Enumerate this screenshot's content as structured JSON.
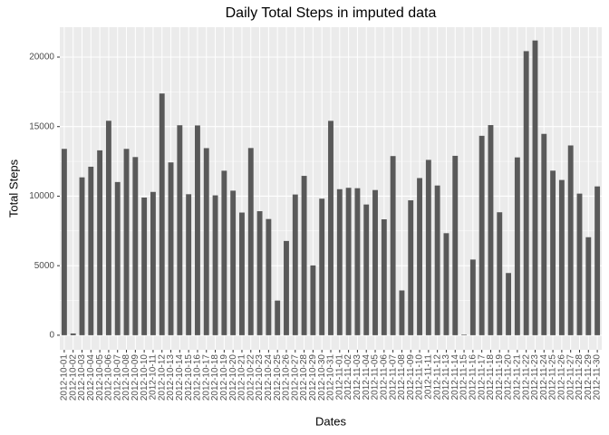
{
  "chart_data": {
    "type": "bar",
    "title": "Daily Total Steps in imputed data",
    "x_label": "Dates",
    "y_label": "Total Steps",
    "categories": [
      "2012-10-01",
      "2012-10-02",
      "2012-10-03",
      "2012-10-04",
      "2012-10-05",
      "2012-10-06",
      "2012-10-07",
      "2012-10-08",
      "2012-10-09",
      "2012-10-10",
      "2012-10-11",
      "2012-10-12",
      "2012-10-13",
      "2012-10-14",
      "2012-10-15",
      "2012-10-16",
      "2012-10-17",
      "2012-10-18",
      "2012-10-19",
      "2012-10-20",
      "2012-10-21",
      "2012-10-22",
      "2012-10-23",
      "2012-10-24",
      "2012-10-25",
      "2012-10-26",
      "2012-10-27",
      "2012-10-28",
      "2012-10-29",
      "2012-10-30",
      "2012-10-31",
      "2012-11-01",
      "2012-11-02",
      "2012-11-03",
      "2012-11-04",
      "2012-11-05",
      "2012-11-06",
      "2012-11-07",
      "2012-11-08",
      "2012-11-09",
      "2012-11-10",
      "2012-11-11",
      "2012-11-12",
      "2012-11-13",
      "2012-11-14",
      "2012-11-15",
      "2012-11-16",
      "2012-11-17",
      "2012-11-18",
      "2012-11-19",
      "2012-11-20",
      "2012-11-21",
      "2012-11-22",
      "2012-11-23",
      "2012-11-24",
      "2012-11-25",
      "2012-11-26",
      "2012-11-27",
      "2012-11-28",
      "2012-11-29",
      "2012-11-30"
    ],
    "values": [
      13400,
      126,
      11352,
      12116,
      13294,
      15420,
      11015,
      13400,
      12811,
      9900,
      10304,
      17382,
      12426,
      15098,
      10139,
      15084,
      13452,
      10056,
      11829,
      10395,
      8821,
      13460,
      8918,
      8355,
      2492,
      6778,
      10119,
      11458,
      5018,
      9819,
      15414,
      10500,
      10600,
      10571,
      9400,
      10439,
      8334,
      12883,
      3219,
      9700,
      11300,
      12608,
      10765,
      7336,
      12900,
      41,
      5441,
      14339,
      15110,
      8841,
      4472,
      12787,
      20427,
      21194,
      14478,
      11834,
      11162,
      13646,
      10183,
      7047,
      10700
    ],
    "color": "#595959",
    "ylim": [
      -1050,
      22150
    ],
    "yticks": [
      0,
      5000,
      10000,
      15000,
      20000
    ],
    "grid": true
  }
}
